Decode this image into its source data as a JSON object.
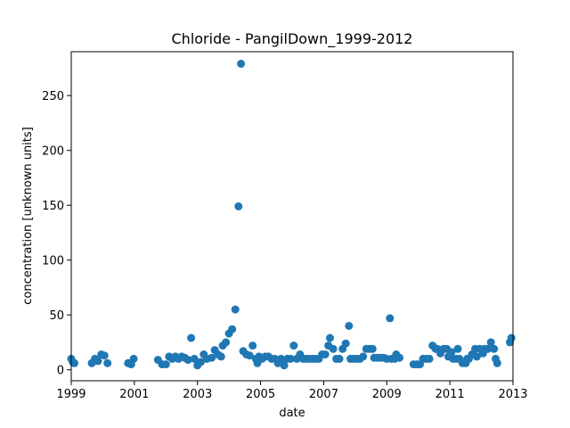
{
  "chart_data": {
    "type": "scatter",
    "title": "Chloride - PangilDown_1999-2012",
    "xlabel": "date",
    "ylabel": "concentration [unknown units]",
    "xlim": [
      1999,
      2013
    ],
    "ylim": [
      -10,
      290
    ],
    "xticks": [
      1999,
      2001,
      2003,
      2005,
      2007,
      2009,
      2011,
      2013
    ],
    "xtick_labels": [
      "1999",
      "2001",
      "2003",
      "2005",
      "2007",
      "2009",
      "2011",
      "2013"
    ],
    "yticks": [
      0,
      50,
      100,
      150,
      200,
      250
    ],
    "ytick_labels": [
      "0",
      "50",
      "100",
      "150",
      "200",
      "250"
    ],
    "grid": false,
    "marker_color": "#1f77b4",
    "points": [
      [
        1999.0,
        10
      ],
      [
        1999.05,
        7
      ],
      [
        1999.1,
        6
      ],
      [
        1999.65,
        6
      ],
      [
        1999.75,
        10
      ],
      [
        1999.85,
        8
      ],
      [
        1999.95,
        14
      ],
      [
        2000.05,
        13
      ],
      [
        2000.15,
        6
      ],
      [
        2000.8,
        6
      ],
      [
        2000.9,
        5
      ],
      [
        2000.98,
        10
      ],
      [
        2001.75,
        9
      ],
      [
        2001.88,
        5
      ],
      [
        2002.0,
        5
      ],
      [
        2002.1,
        12
      ],
      [
        2002.2,
        10
      ],
      [
        2002.3,
        12
      ],
      [
        2002.4,
        10
      ],
      [
        2002.5,
        12
      ],
      [
        2002.6,
        11
      ],
      [
        2002.7,
        9
      ],
      [
        2002.8,
        29
      ],
      [
        2002.9,
        10
      ],
      [
        2003.0,
        4
      ],
      [
        2003.1,
        7
      ],
      [
        2003.2,
        14
      ],
      [
        2003.3,
        10
      ],
      [
        2003.45,
        11
      ],
      [
        2003.55,
        18
      ],
      [
        2003.65,
        14
      ],
      [
        2003.75,
        12
      ],
      [
        2003.8,
        22
      ],
      [
        2003.9,
        25
      ],
      [
        2004.0,
        33
      ],
      [
        2004.1,
        37
      ],
      [
        2004.2,
        55
      ],
      [
        2004.3,
        149
      ],
      [
        2004.38,
        279
      ],
      [
        2004.45,
        17
      ],
      [
        2004.55,
        14
      ],
      [
        2004.65,
        13
      ],
      [
        2004.75,
        22
      ],
      [
        2004.85,
        10
      ],
      [
        2004.9,
        6
      ],
      [
        2004.95,
        12
      ],
      [
        2005.05,
        10
      ],
      [
        2005.15,
        12
      ],
      [
        2005.25,
        12
      ],
      [
        2005.35,
        10
      ],
      [
        2005.45,
        10
      ],
      [
        2005.55,
        6
      ],
      [
        2005.65,
        10
      ],
      [
        2005.75,
        4
      ],
      [
        2005.85,
        10
      ],
      [
        2005.95,
        10
      ],
      [
        2006.05,
        22
      ],
      [
        2006.15,
        10
      ],
      [
        2006.25,
        14
      ],
      [
        2006.35,
        10
      ],
      [
        2006.45,
        10
      ],
      [
        2006.55,
        10
      ],
      [
        2006.65,
        10
      ],
      [
        2006.75,
        10
      ],
      [
        2006.85,
        10
      ],
      [
        2006.95,
        14
      ],
      [
        2007.05,
        14
      ],
      [
        2007.15,
        22
      ],
      [
        2007.2,
        29
      ],
      [
        2007.3,
        19
      ],
      [
        2007.4,
        10
      ],
      [
        2007.5,
        10
      ],
      [
        2007.6,
        19
      ],
      [
        2007.7,
        24
      ],
      [
        2007.8,
        40
      ],
      [
        2007.85,
        10
      ],
      [
        2007.95,
        10
      ],
      [
        2008.05,
        10
      ],
      [
        2008.15,
        10
      ],
      [
        2008.25,
        12
      ],
      [
        2008.35,
        19
      ],
      [
        2008.45,
        19
      ],
      [
        2008.55,
        19
      ],
      [
        2008.6,
        11
      ],
      [
        2008.7,
        11
      ],
      [
        2008.8,
        11
      ],
      [
        2008.9,
        11
      ],
      [
        2009.0,
        10
      ],
      [
        2009.1,
        47
      ],
      [
        2009.15,
        10
      ],
      [
        2009.25,
        10
      ],
      [
        2009.3,
        14
      ],
      [
        2009.4,
        11
      ],
      [
        2009.85,
        5
      ],
      [
        2009.95,
        5
      ],
      [
        2010.05,
        5
      ],
      [
        2010.15,
        10
      ],
      [
        2010.25,
        10
      ],
      [
        2010.35,
        10
      ],
      [
        2010.45,
        22
      ],
      [
        2010.55,
        19
      ],
      [
        2010.6,
        19
      ],
      [
        2010.7,
        15
      ],
      [
        2010.8,
        19
      ],
      [
        2010.9,
        19
      ],
      [
        2010.95,
        12
      ],
      [
        2011.05,
        16
      ],
      [
        2011.1,
        10
      ],
      [
        2011.2,
        10
      ],
      [
        2011.25,
        19
      ],
      [
        2011.3,
        10
      ],
      [
        2011.4,
        6
      ],
      [
        2011.5,
        6
      ],
      [
        2011.55,
        10
      ],
      [
        2011.6,
        10
      ],
      [
        2011.7,
        14
      ],
      [
        2011.8,
        19
      ],
      [
        2011.85,
        12
      ],
      [
        2011.95,
        19
      ],
      [
        2012.05,
        15
      ],
      [
        2012.1,
        19
      ],
      [
        2012.2,
        19
      ],
      [
        2012.3,
        25
      ],
      [
        2012.4,
        19
      ],
      [
        2012.45,
        10
      ],
      [
        2012.5,
        6
      ],
      [
        2012.9,
        25
      ],
      [
        2012.95,
        29
      ]
    ]
  }
}
